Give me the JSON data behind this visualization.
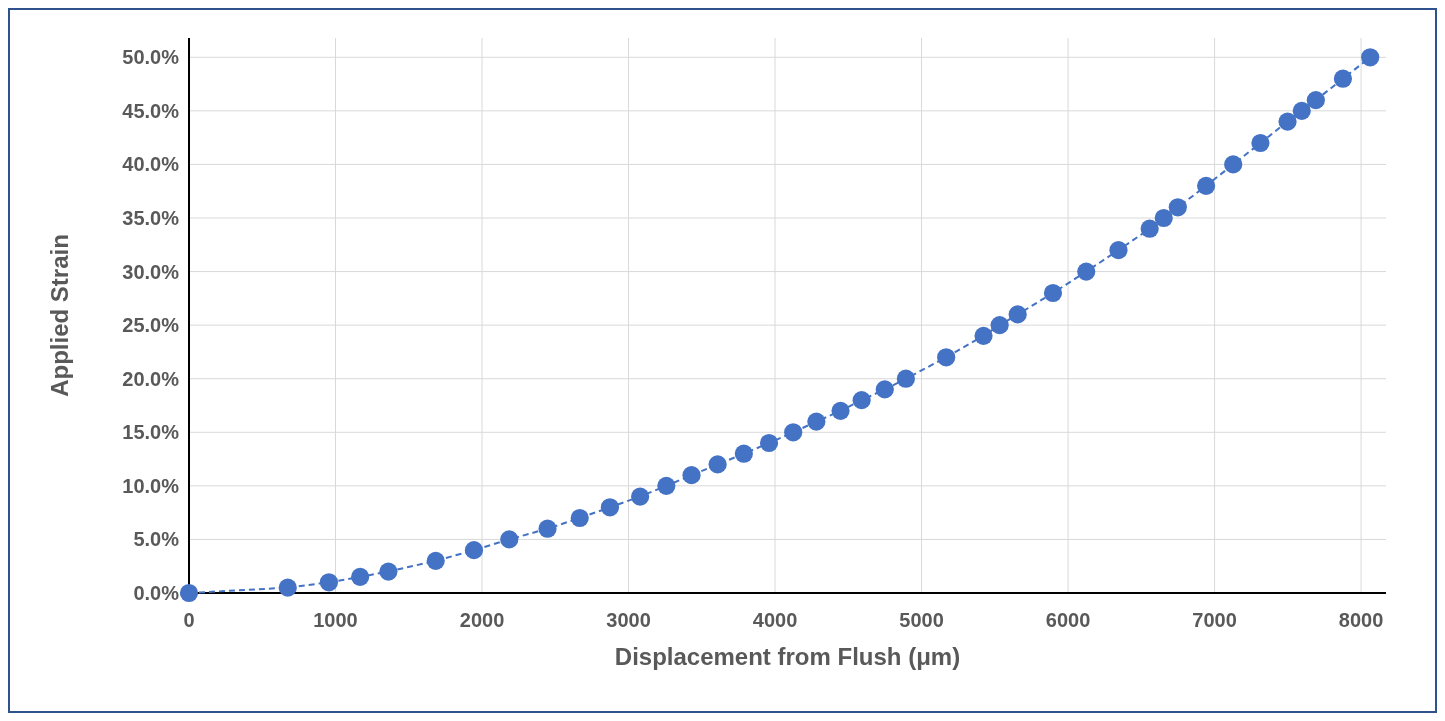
{
  "chart_data": {
    "type": "line",
    "xlabel": "Displacement from Flush (μm)",
    "ylabel": "Applied Strain",
    "x": [
      0,
      674,
      955,
      1168,
      1361,
      1684,
      1945,
      2186,
      2447,
      2667,
      2873,
      3079,
      3258,
      3430,
      3608,
      3787,
      3959,
      4124,
      4282,
      4447,
      4591,
      4749,
      4893,
      5168,
      5423,
      5533,
      5656,
      5897,
      6124,
      6344,
      6557,
      6653,
      6749,
      6942,
      7127,
      7313,
      7498,
      7595,
      7691,
      7876,
      8062
    ],
    "series": [
      {
        "color": "#4472c4",
        "values": [
          0,
          0.5,
          1,
          1.5,
          2,
          3,
          4,
          5,
          6,
          7,
          8,
          9,
          10,
          11,
          12,
          13,
          14,
          15,
          16,
          17,
          18,
          19,
          20,
          22,
          24,
          25,
          26,
          28,
          30,
          32,
          34,
          35,
          36,
          38,
          40,
          42,
          44,
          45,
          46,
          48,
          50
        ]
      }
    ],
    "xlim": [
      0,
      8170
    ],
    "xticks": [
      0,
      1000,
      2000,
      3000,
      4000,
      5000,
      6000,
      7000,
      8000
    ],
    "ylim": [
      0,
      51.8
    ],
    "yticks": [
      {
        "value": 0,
        "label": "0.0%"
      },
      {
        "value": 5,
        "label": "5.0%"
      },
      {
        "value": 10,
        "label": "10.0%"
      },
      {
        "value": 15,
        "label": "15.0%"
      },
      {
        "value": 20,
        "label": "20.0%"
      },
      {
        "value": 25,
        "label": "25.0%"
      },
      {
        "value": 30,
        "label": "30.0%"
      },
      {
        "value": 35,
        "label": "35.0%"
      },
      {
        "value": 40,
        "label": "40.0%"
      },
      {
        "value": 45,
        "label": "45.0%"
      },
      {
        "value": 50,
        "label": "50.0%"
      }
    ],
    "grid": true,
    "marker": "circle",
    "line_style": "dashed"
  }
}
